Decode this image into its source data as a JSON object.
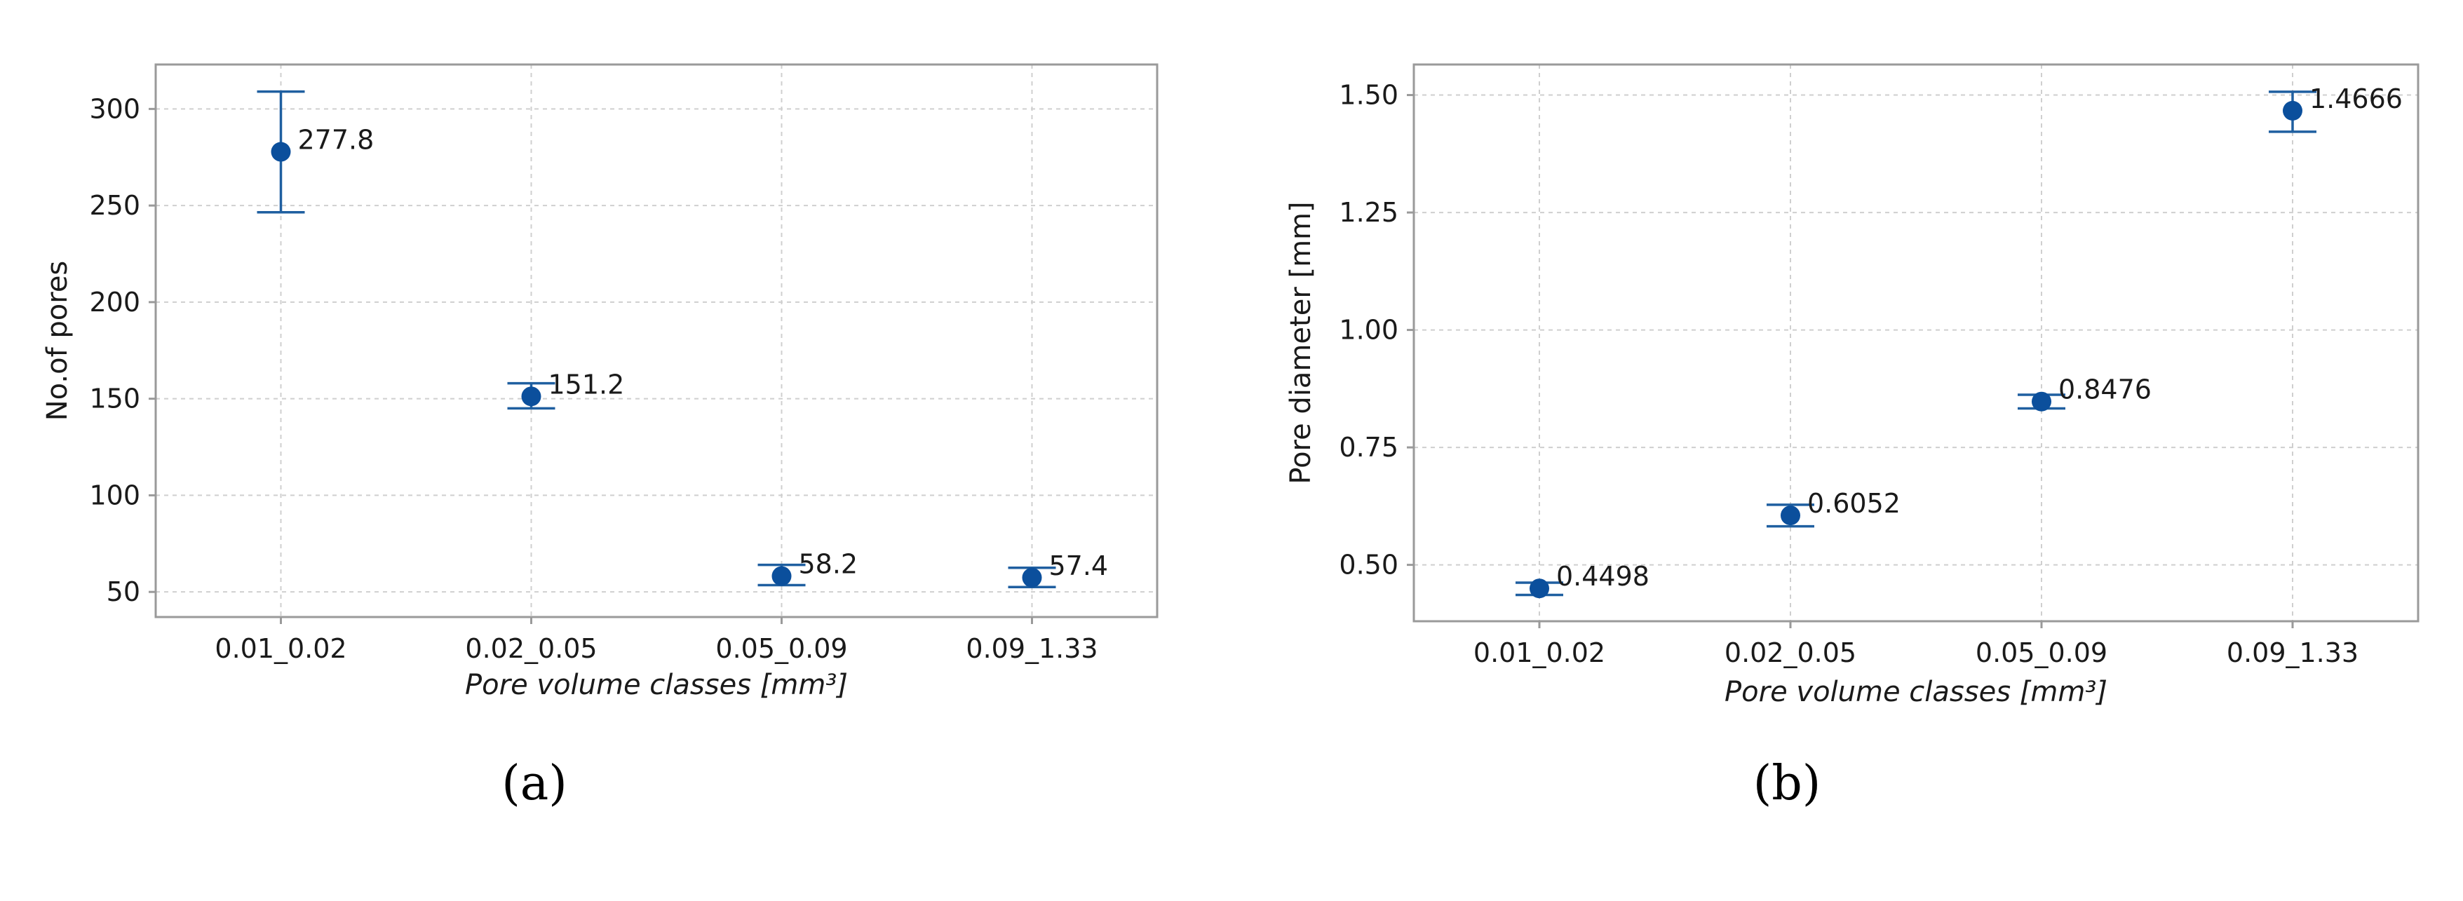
{
  "chart_data": [
    {
      "type": "scatter",
      "panel_label": "(a)",
      "title": "",
      "xlabel": "Pore volume classes [mm³]",
      "ylabel": "No.of pores",
      "categories": [
        "0.01_0.02",
        "0.02_0.05",
        "0.05_0.09",
        "0.09_1.33"
      ],
      "values": [
        277.8,
        151.2,
        58.2,
        57.4
      ],
      "value_labels": [
        "277.8",
        "151.2",
        "58.2",
        "57.4"
      ],
      "error_low": [
        246.5,
        145.0,
        53.5,
        52.5
      ],
      "error_high": [
        309.0,
        158.0,
        64.0,
        62.5
      ],
      "ylim": [
        37,
        323
      ],
      "yticks": [
        50,
        100,
        150,
        200,
        250,
        300
      ],
      "ytick_labels": [
        "50",
        "100",
        "150",
        "200",
        "250",
        "300"
      ],
      "grid": true,
      "marker_color": "#0b4f9c",
      "error_color": "#1f5fa0"
    },
    {
      "type": "scatter",
      "panel_label": "(b)",
      "title": "",
      "xlabel": "Pore volume classes [mm³]",
      "ylabel": "Pore diameter [mm]",
      "categories": [
        "0.01_0.02",
        "0.02_0.05",
        "0.05_0.09",
        "0.09_1.33"
      ],
      "values": [
        0.4498,
        0.6052,
        0.8476,
        1.4666
      ],
      "value_labels": [
        "0.4498",
        "0.6052",
        "0.8476",
        "1.4666"
      ],
      "error_low": [
        0.436,
        0.582,
        0.833,
        1.422
      ],
      "error_high": [
        0.462,
        0.628,
        0.862,
        1.507
      ],
      "ylim": [
        0.38,
        1.565
      ],
      "yticks": [
        0.5,
        0.75,
        1.0,
        1.25,
        1.5
      ],
      "ytick_labels": [
        "0.50",
        "0.75",
        "1.00",
        "1.25",
        "1.50"
      ],
      "grid": true,
      "marker_color": "#0b4f9c",
      "error_color": "#1f5fa0"
    }
  ]
}
